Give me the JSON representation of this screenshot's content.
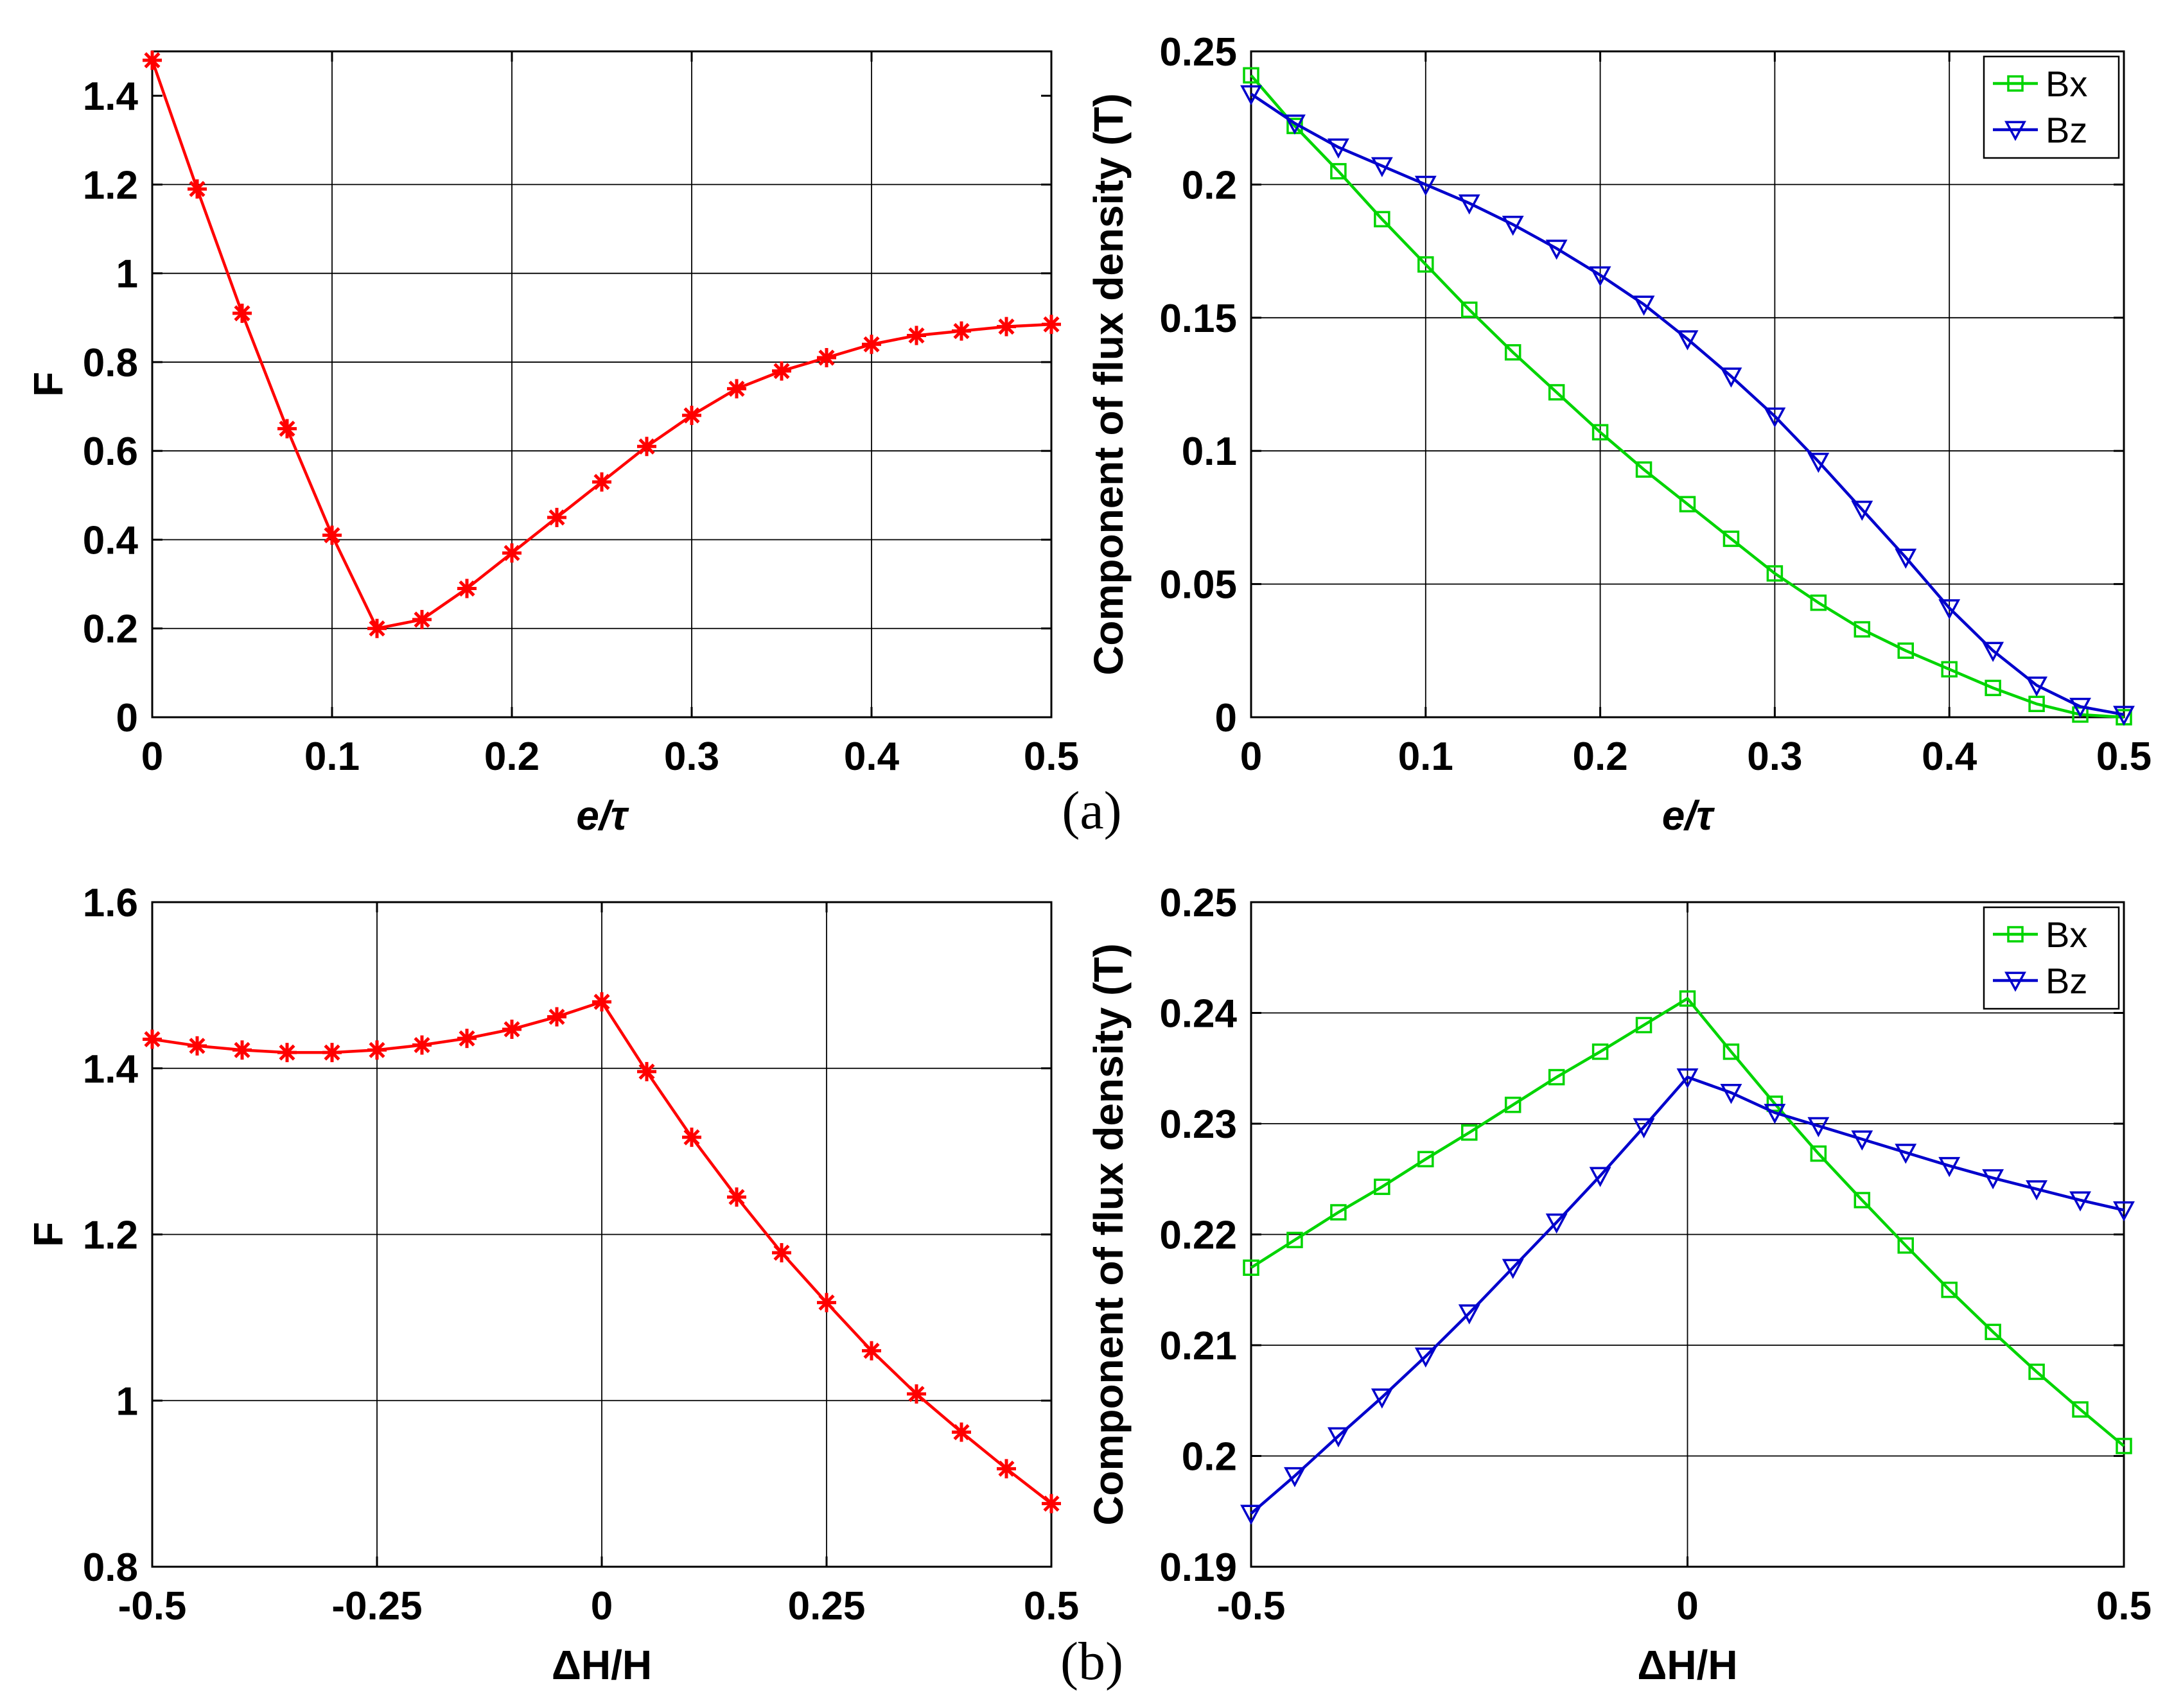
{
  "figure_labels": {
    "a": "(a)",
    "b": "(b)"
  },
  "colors": {
    "red": "#ff0000",
    "green": "#00d400",
    "blue": "#0000cc",
    "grid": "#000000"
  },
  "chart_data": [
    {
      "id": "a-left",
      "type": "line",
      "xlabel": "e/τ",
      "ylabel": "F",
      "xlim": [
        0,
        0.5
      ],
      "ylim": [
        0,
        1.5
      ],
      "xticks": [
        0,
        0.1,
        0.2,
        0.3,
        0.4,
        0.5
      ],
      "xticklabels": [
        "0",
        "0.1",
        "0.2",
        "0.3",
        "0.4",
        "0.5"
      ],
      "yticks": [
        0,
        0.2,
        0.4,
        0.6,
        0.8,
        1,
        1.2,
        1.4
      ],
      "yticklabels": [
        "0",
        "0.2",
        "0.4",
        "0.6",
        "0.8",
        "1",
        "1.2",
        "1.4"
      ],
      "grid": true,
      "legend": null,
      "series": [
        {
          "marker": "asterisk",
          "color": "#ff0000",
          "x": [
            0,
            0.025,
            0.05,
            0.075,
            0.1,
            0.125,
            0.15,
            0.175,
            0.2,
            0.225,
            0.25,
            0.275,
            0.3,
            0.325,
            0.35,
            0.375,
            0.4,
            0.425,
            0.45,
            0.475,
            0.5
          ],
          "y": [
            1.48,
            1.19,
            0.91,
            0.65,
            0.41,
            0.2,
            0.22,
            0.29,
            0.37,
            0.45,
            0.53,
            0.61,
            0.68,
            0.74,
            0.78,
            0.81,
            0.84,
            0.86,
            0.87,
            0.88,
            0.885
          ]
        }
      ]
    },
    {
      "id": "a-right",
      "type": "line",
      "xlabel": "e/τ",
      "ylabel": "Component of flux density (T)",
      "xlim": [
        0,
        0.5
      ],
      "ylim": [
        0,
        0.25
      ],
      "xticks": [
        0,
        0.1,
        0.2,
        0.3,
        0.4,
        0.5
      ],
      "xticklabels": [
        "0",
        "0.1",
        "0.2",
        "0.3",
        "0.4",
        "0.5"
      ],
      "yticks": [
        0,
        0.05,
        0.1,
        0.15,
        0.2,
        0.25
      ],
      "yticklabels": [
        "0",
        "0.05",
        "0.1",
        "0.15",
        "0.2",
        "0.25"
      ],
      "grid": true,
      "legend": "top-right",
      "series": [
        {
          "name": "Bx",
          "marker": "square",
          "color": "#00d400",
          "x": [
            0,
            0.025,
            0.05,
            0.075,
            0.1,
            0.125,
            0.15,
            0.175,
            0.2,
            0.225,
            0.25,
            0.275,
            0.3,
            0.325,
            0.35,
            0.375,
            0.4,
            0.425,
            0.45,
            0.475,
            0.5
          ],
          "y": [
            0.241,
            0.222,
            0.205,
            0.187,
            0.17,
            0.153,
            0.137,
            0.122,
            0.107,
            0.093,
            0.08,
            0.067,
            0.054,
            0.043,
            0.033,
            0.025,
            0.018,
            0.011,
            0.005,
            0.001,
            0.0
          ]
        },
        {
          "name": "Bz",
          "marker": "triangle-down",
          "color": "#0000cc",
          "x": [
            0,
            0.025,
            0.05,
            0.075,
            0.1,
            0.125,
            0.15,
            0.175,
            0.2,
            0.225,
            0.25,
            0.275,
            0.3,
            0.325,
            0.35,
            0.375,
            0.4,
            0.425,
            0.45,
            0.475,
            0.5
          ],
          "y": [
            0.234,
            0.223,
            0.214,
            0.207,
            0.2,
            0.193,
            0.185,
            0.176,
            0.166,
            0.155,
            0.142,
            0.128,
            0.113,
            0.096,
            0.078,
            0.06,
            0.041,
            0.025,
            0.012,
            0.004,
            0.001
          ]
        }
      ]
    },
    {
      "id": "b-left",
      "type": "line",
      "xlabel": "ΔH/H",
      "ylabel": "F",
      "xlim": [
        -0.5,
        0.5
      ],
      "ylim": [
        0.8,
        1.6
      ],
      "xticks": [
        -0.5,
        -0.25,
        0,
        0.25,
        0.5
      ],
      "xticklabels": [
        "-0.5",
        "-0.25",
        "0",
        "0.25",
        "0.5"
      ],
      "yticks": [
        0.8,
        1,
        1.2,
        1.4,
        1.6
      ],
      "yticklabels": [
        "0.8",
        "1",
        "1.2",
        "1.4",
        "1.6"
      ],
      "grid": true,
      "legend": null,
      "series": [
        {
          "marker": "asterisk",
          "color": "#ff0000",
          "x": [
            -0.5,
            -0.45,
            -0.4,
            -0.35,
            -0.3,
            -0.25,
            -0.2,
            -0.15,
            -0.1,
            -0.05,
            0,
            0.05,
            0.1,
            0.15,
            0.2,
            0.25,
            0.3,
            0.35,
            0.4,
            0.45,
            0.5
          ],
          "y": [
            1.435,
            1.427,
            1.422,
            1.419,
            1.419,
            1.422,
            1.428,
            1.436,
            1.447,
            1.462,
            1.48,
            1.396,
            1.317,
            1.245,
            1.178,
            1.118,
            1.06,
            1.008,
            0.962,
            0.918,
            0.876
          ]
        }
      ]
    },
    {
      "id": "b-right",
      "type": "line",
      "xlabel": "ΔH/H",
      "ylabel": "Component of flux density (T)",
      "xlim": [
        -0.5,
        0.5
      ],
      "ylim": [
        0.19,
        0.25
      ],
      "xticks": [
        -0.5,
        0,
        0.5
      ],
      "xticklabels": [
        "-0.5",
        "0",
        "0.5"
      ],
      "yticks": [
        0.19,
        0.2,
        0.21,
        0.22,
        0.23,
        0.24,
        0.25
      ],
      "yticklabels": [
        "0.19",
        "0.2",
        "0.21",
        "0.22",
        "0.23",
        "0.24",
        "0.25"
      ],
      "grid": true,
      "legend": "top-right",
      "series": [
        {
          "name": "Bx",
          "marker": "square",
          "color": "#00d400",
          "x": [
            -0.5,
            -0.45,
            -0.4,
            -0.35,
            -0.3,
            -0.25,
            -0.2,
            -0.15,
            -0.1,
            -0.05,
            0,
            0.05,
            0.1,
            0.15,
            0.2,
            0.25,
            0.3,
            0.35,
            0.4,
            0.45,
            0.5
          ],
          "y": [
            0.217,
            0.2195,
            0.222,
            0.2243,
            0.2268,
            0.2292,
            0.2317,
            0.2342,
            0.2365,
            0.2389,
            0.2413,
            0.2365,
            0.2318,
            0.2273,
            0.2231,
            0.219,
            0.215,
            0.2112,
            0.2076,
            0.2042,
            0.2009
          ]
        },
        {
          "name": "Bz",
          "marker": "triangle-down",
          "color": "#0000cc",
          "x": [
            -0.5,
            -0.45,
            -0.4,
            -0.35,
            -0.3,
            -0.25,
            -0.2,
            -0.15,
            -0.1,
            -0.05,
            0,
            0.05,
            0.1,
            0.15,
            0.2,
            0.25,
            0.3,
            0.35,
            0.4,
            0.45,
            0.5
          ],
          "y": [
            0.1948,
            0.1982,
            0.2018,
            0.2053,
            0.209,
            0.2129,
            0.217,
            0.2211,
            0.2253,
            0.2297,
            0.2342,
            0.2328,
            0.231,
            0.2298,
            0.2286,
            0.2274,
            0.2262,
            0.2251,
            0.2241,
            0.2231,
            0.2222
          ]
        }
      ]
    }
  ]
}
